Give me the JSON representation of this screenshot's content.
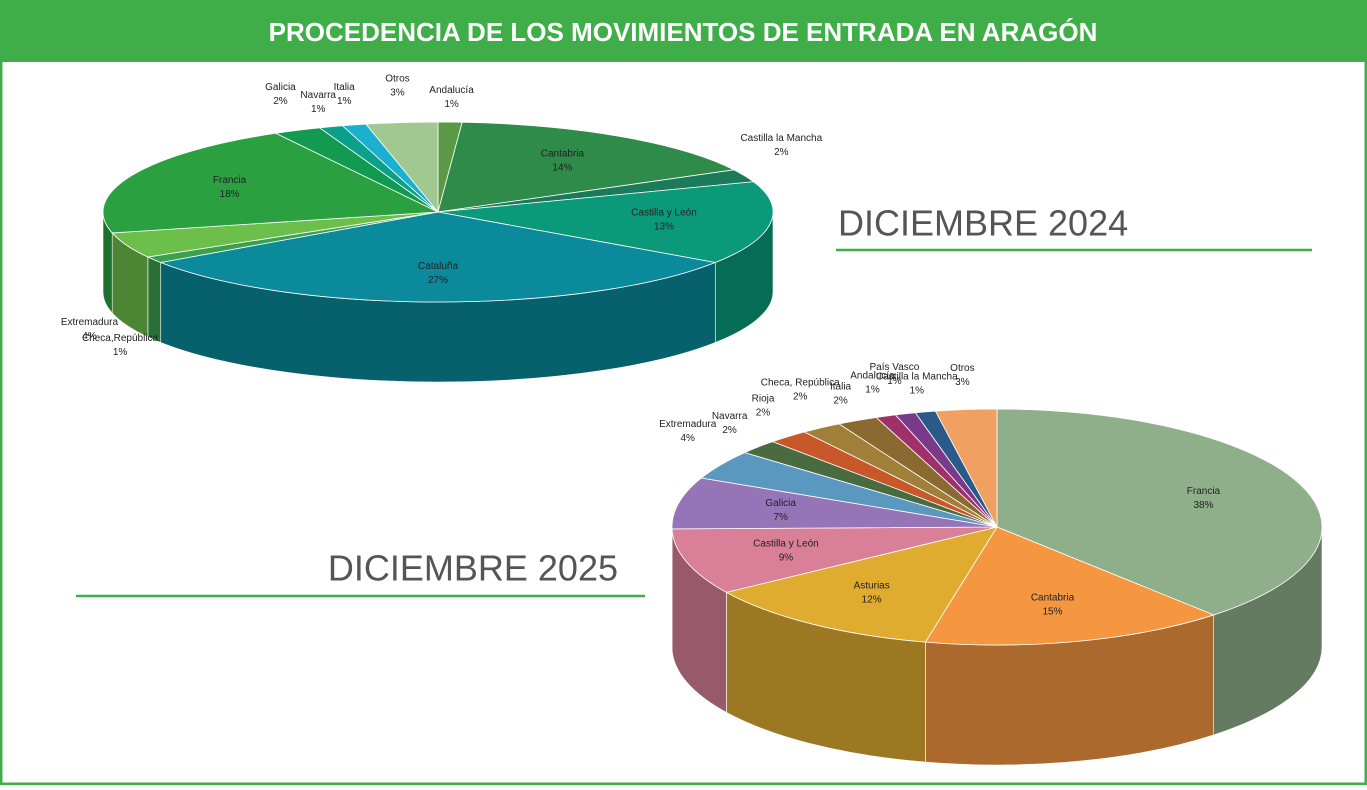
{
  "title": "PROCEDENCIA DE LOS MOVIMIENTOS DE ENTRADA EN ARAGÓN",
  "chart_data": [
    {
      "type": "pie",
      "title": "DICIEMBRE 2024",
      "categories": [
        "Andalucía",
        "Cantabria",
        "Castilla la Mancha",
        "Castilla y León",
        "Cataluña",
        "Checa,República",
        "Extremadura",
        "Francia",
        "Galicia",
        "Navarra",
        "Italia",
        "Otros"
      ],
      "values": [
        1,
        14,
        2,
        13,
        27,
        1,
        4,
        18,
        2,
        1,
        1,
        3
      ],
      "value_labels": [
        "1%",
        "14%",
        "2%",
        "13%",
        "27%",
        "1%",
        "4%",
        "18%",
        "2%",
        "1%",
        "1%",
        "3%"
      ],
      "colors": [
        "#5a9a46",
        "#2e8b4a",
        "#1a7a5a",
        "#0a9a7a",
        "#0a8a9a",
        "#3aa050",
        "#6cbf4a",
        "#2aa040",
        "#129a50",
        "#0aa08a",
        "#1ab0d0",
        "#a0c890"
      ]
    },
    {
      "type": "pie",
      "title": "DICIEMBRE 2025",
      "categories": [
        "Francia",
        "Cantabria",
        "Asturias",
        "Castilla y León",
        "Galicia",
        "Extremadura",
        "Navarra",
        "Rioja",
        "Checa, República",
        "Italia",
        "Andalucía",
        "País Vasco",
        "Castilla la Mancha",
        "Otros"
      ],
      "values": [
        38,
        15,
        12,
        9,
        7,
        4,
        2,
        2,
        2,
        2,
        1,
        1,
        1,
        3
      ],
      "value_labels": [
        "38%",
        "15%",
        "12%",
        "9%",
        "7%",
        "4%",
        "2%",
        "2%",
        "2%",
        "2%",
        "1%",
        "1%",
        "1%",
        "3%"
      ],
      "colors": [
        "#8faf8a",
        "#f59640",
        "#e0ac30",
        "#d98098",
        "#9575b8",
        "#5a98c0",
        "#4a6a40",
        "#c8582a",
        "#a08038",
        "#8a6a30",
        "#a0306a",
        "#7a3a8a",
        "#2a5a8a",
        "#f0a060"
      ]
    }
  ]
}
